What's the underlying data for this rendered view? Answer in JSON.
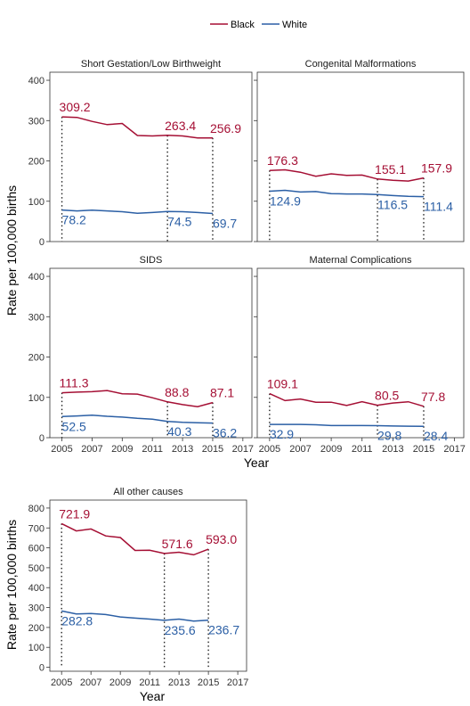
{
  "legend": {
    "items": [
      {
        "name": "Black",
        "color": "#A50F34"
      },
      {
        "name": "White",
        "color": "#2B5FA5"
      }
    ]
  },
  "axis_titles": {
    "y": "Rate per 100,000 births",
    "x": "Year"
  },
  "x_ticks": [
    "2005",
    "2007",
    "2009",
    "2011",
    "2013",
    "2015",
    "2017"
  ],
  "chart_data": [
    {
      "type": "line",
      "title": "Short Gestation/Low Birthweight",
      "ylim": [
        0,
        420
      ],
      "yticks": [
        0,
        100,
        200,
        300,
        400
      ],
      "x": [
        2005,
        2006,
        2007,
        2008,
        2009,
        2010,
        2011,
        2012,
        2013,
        2014,
        2015
      ],
      "series": [
        {
          "name": "Black",
          "values": [
            309.2,
            308,
            298,
            290,
            293,
            263,
            262,
            263.4,
            262,
            257,
            256.9
          ]
        },
        {
          "name": "White",
          "values": [
            78.2,
            76,
            78,
            76,
            74,
            70,
            72,
            74.5,
            74,
            72,
            69.7
          ]
        }
      ],
      "annotations": [
        {
          "x": 2005,
          "black": "309.2",
          "white": "78.2"
        },
        {
          "x": 2012,
          "black": "263.4",
          "white": "74.5"
        },
        {
          "x": 2015,
          "black": "256.9",
          "white": "69.7"
        }
      ]
    },
    {
      "type": "line",
      "title": "Congenital Malformations",
      "ylim": [
        0,
        420
      ],
      "yticks": [
        0,
        100,
        200,
        300,
        400
      ],
      "x": [
        2005,
        2006,
        2007,
        2008,
        2009,
        2010,
        2011,
        2012,
        2013,
        2014,
        2015
      ],
      "series": [
        {
          "name": "Black",
          "values": [
            176.3,
            178,
            172,
            162,
            168,
            164,
            165,
            155.1,
            152,
            150,
            157.9
          ]
        },
        {
          "name": "White",
          "values": [
            124.9,
            127,
            123,
            124,
            119,
            118,
            118,
            116.5,
            114,
            112,
            111.4
          ]
        }
      ],
      "annotations": [
        {
          "x": 2005,
          "black": "176.3",
          "white": "124.9"
        },
        {
          "x": 2012,
          "black": "155.1",
          "white": "116.5"
        },
        {
          "x": 2015,
          "black": "157.9",
          "white": "111.4"
        }
      ]
    },
    {
      "type": "line",
      "title": "SIDS",
      "ylim": [
        0,
        420
      ],
      "yticks": [
        0,
        100,
        200,
        300,
        400
      ],
      "x": [
        2005,
        2006,
        2007,
        2008,
        2009,
        2010,
        2011,
        2012,
        2013,
        2014,
        2015
      ],
      "series": [
        {
          "name": "Black",
          "values": [
            111.3,
            113,
            114,
            117,
            109,
            108,
            99,
            88.8,
            82,
            77,
            87.1
          ]
        },
        {
          "name": "White",
          "values": [
            52.5,
            54,
            56,
            53,
            51,
            48,
            46,
            40.3,
            38,
            37,
            36.2
          ]
        }
      ],
      "annotations": [
        {
          "x": 2005,
          "black": "111.3",
          "white": "52.5"
        },
        {
          "x": 2012,
          "black": "88.8",
          "white": "40.3"
        },
        {
          "x": 2015,
          "black": "87.1",
          "white": "36.2"
        }
      ]
    },
    {
      "type": "line",
      "title": "Maternal Complications",
      "ylim": [
        0,
        420
      ],
      "yticks": [
        0,
        100,
        200,
        300,
        400
      ],
      "x": [
        2005,
        2006,
        2007,
        2008,
        2009,
        2010,
        2011,
        2012,
        2013,
        2014,
        2015
      ],
      "series": [
        {
          "name": "Black",
          "values": [
            109.1,
            92,
            96,
            88,
            88,
            80,
            89,
            80.5,
            86,
            89,
            77.8
          ]
        },
        {
          "name": "White",
          "values": [
            32.9,
            33,
            33,
            32,
            30,
            30,
            30,
            29.8,
            29,
            28.5,
            28.4
          ]
        }
      ],
      "annotations": [
        {
          "x": 2005,
          "black": "109.1",
          "white": "32.9"
        },
        {
          "x": 2012,
          "black": "80.5",
          "white": "29.8"
        },
        {
          "x": 2015,
          "black": "77.8",
          "white": "28.4"
        }
      ]
    },
    {
      "type": "line",
      "title": "All other causes",
      "ylim": [
        -20,
        840
      ],
      "yticks": [
        0,
        100,
        200,
        300,
        400,
        500,
        600,
        700,
        800
      ],
      "x": [
        2005,
        2006,
        2007,
        2008,
        2009,
        2010,
        2011,
        2012,
        2013,
        2014,
        2015
      ],
      "series": [
        {
          "name": "Black",
          "values": [
            721.9,
            685,
            695,
            660,
            652,
            587,
            588,
            571.6,
            578,
            565,
            593.0
          ]
        },
        {
          "name": "White",
          "values": [
            282.8,
            268,
            270,
            265,
            253,
            247,
            242,
            235.6,
            242,
            232,
            236.7
          ]
        }
      ],
      "annotations": [
        {
          "x": 2005,
          "black": "721.9",
          "white": "282.8"
        },
        {
          "x": 2012,
          "black": "571.6",
          "white": "235.6"
        },
        {
          "x": 2015,
          "black": "593.0",
          "white": "236.7"
        }
      ]
    }
  ]
}
